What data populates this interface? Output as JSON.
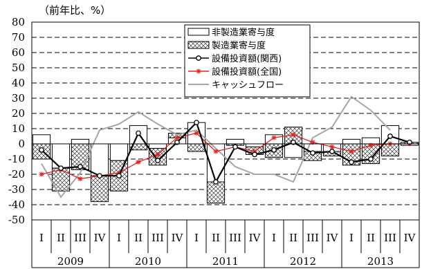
{
  "chart_data": {
    "type": "bar",
    "unit_label": "（前年比、%）",
    "ylim": [
      -50,
      80
    ],
    "yticks": [
      "80",
      "70",
      "60",
      "50",
      "40",
      "30",
      "20",
      "10",
      "0",
      "-10",
      "-20",
      "-30",
      "-40",
      "-50"
    ],
    "ytick_values": [
      80,
      70,
      60,
      50,
      40,
      30,
      20,
      10,
      0,
      -10,
      -20,
      -30,
      -40,
      -50
    ],
    "quarters": [
      "I",
      "II",
      "III",
      "IV",
      "I",
      "II",
      "III",
      "IV",
      "I",
      "II",
      "III",
      "IV",
      "I",
      "II",
      "III",
      "IV",
      "I",
      "II",
      "III",
      "IV"
    ],
    "years": [
      "2009",
      "2010",
      "2011",
      "2012",
      "2013"
    ],
    "grid": "dashed-horizontal",
    "legend_position": "top-center",
    "series": [
      {
        "name": "非製造業寄与度",
        "kind": "bar",
        "color": "#ffffff",
        "stroke": "#000000",
        "values": [
          6,
          -16,
          3,
          -21,
          -11,
          12,
          -3,
          4,
          14,
          -25,
          3,
          -2,
          6,
          -9,
          -5,
          -5,
          3,
          4,
          12,
          -1
        ]
      },
      {
        "name": "製造業寄与度",
        "kind": "bar-hatched",
        "color": "#ffffff",
        "stroke": "#000000",
        "values": [
          -10,
          -15,
          -17,
          -17,
          -20,
          -4,
          -11,
          3,
          -5,
          -14,
          -1,
          -5,
          -9,
          11,
          -6,
          -3,
          -14,
          -13,
          -8,
          1
        ]
      },
      {
        "name": "設備投資額(関西)",
        "kind": "line-marker-circle",
        "color": "#000000",
        "values": [
          -4,
          -16,
          -15,
          -21,
          -21,
          7,
          -11,
          1,
          14,
          -25,
          -2,
          -7,
          -4,
          1,
          -6,
          -5,
          -12,
          -10,
          5,
          1
        ]
      },
      {
        "name": "設備投資額(全国)",
        "kind": "line-marker-star",
        "color": "#e8201c",
        "values": [
          -20,
          -17,
          -23,
          -21,
          -19,
          -12,
          -7,
          4,
          7,
          -5,
          -2,
          -5,
          4,
          6,
          1,
          -2,
          -5,
          -1,
          0,
          0
        ]
      },
      {
        "name": "キャッシュフロー",
        "kind": "line",
        "color": "#a6a6a6",
        "values": [
          -13,
          -35,
          -19,
          9,
          13,
          21,
          13,
          6,
          9,
          -3,
          -15,
          -20,
          -20,
          -25,
          4,
          11,
          31,
          22,
          9,
          null
        ]
      }
    ]
  }
}
